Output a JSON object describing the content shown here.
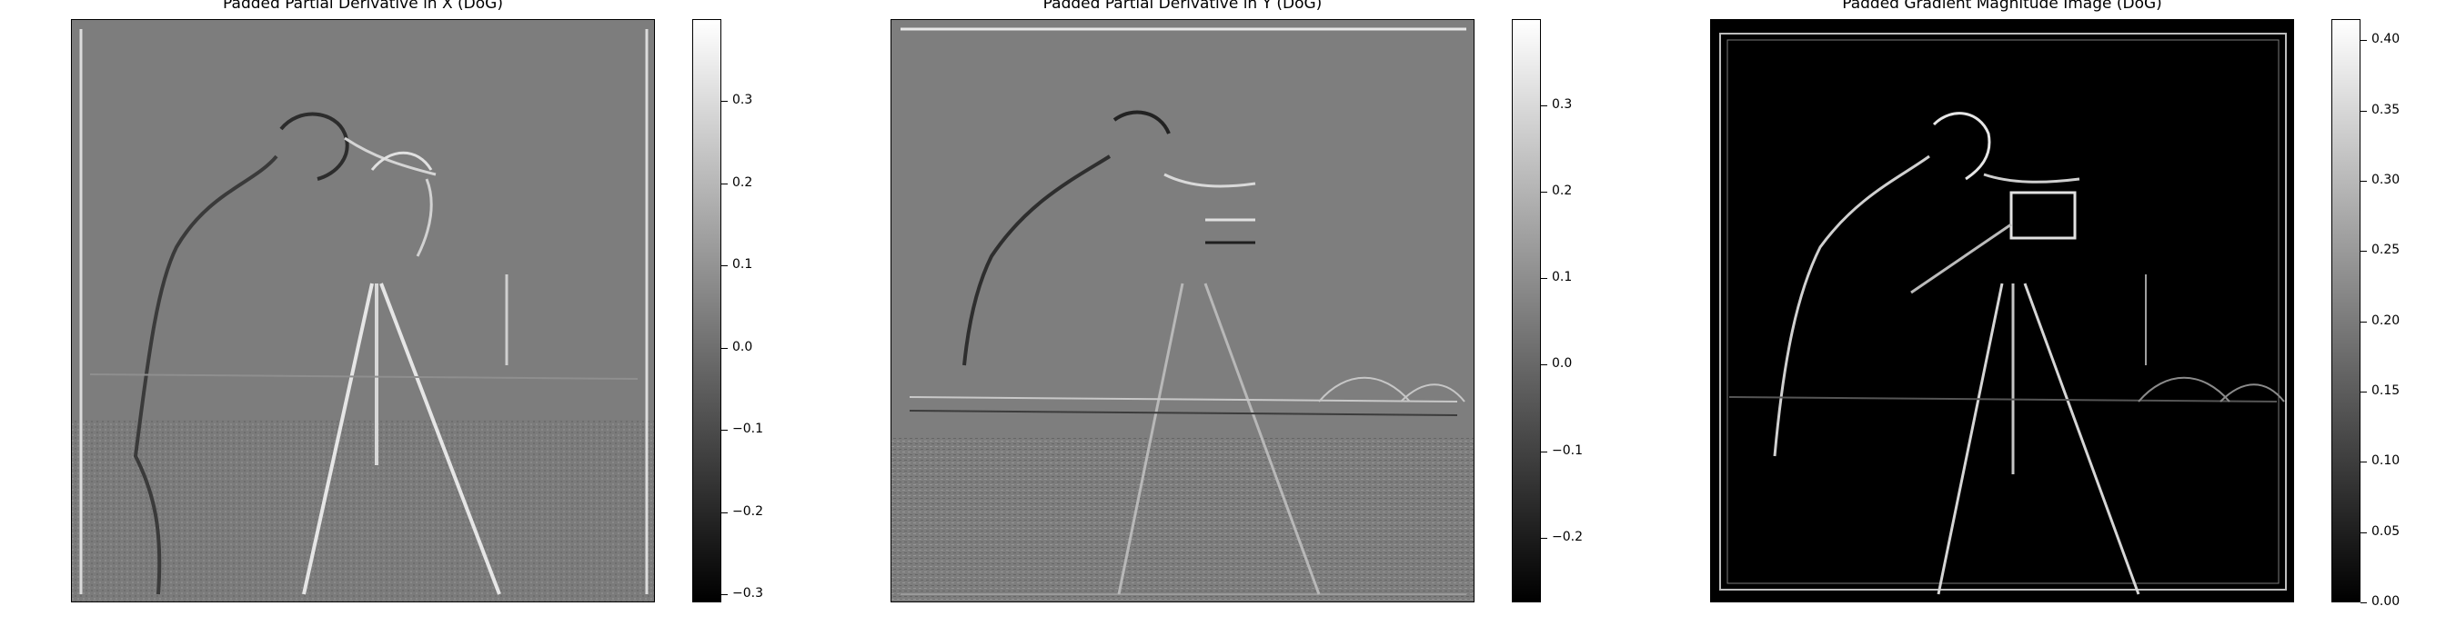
{
  "panels": [
    {
      "title": "Padded Partial Derivative in X (DoG)",
      "colorbar": {
        "min": -0.31,
        "max": 0.4,
        "ticks": [
          {
            "value": 0.3,
            "label": "0.3"
          },
          {
            "value": 0.2,
            "label": "0.2"
          },
          {
            "value": 0.1,
            "label": "0.1"
          },
          {
            "value": 0.0,
            "label": "0.0"
          },
          {
            "value": -0.1,
            "label": "−0.1"
          },
          {
            "value": -0.2,
            "label": "−0.2"
          },
          {
            "value": -0.3,
            "label": "−0.3"
          }
        ]
      }
    },
    {
      "title": "Padded Partial Derivative in Y (DoG)",
      "colorbar": {
        "min": -0.275,
        "max": 0.4,
        "ticks": [
          {
            "value": 0.3,
            "label": "0.3"
          },
          {
            "value": 0.2,
            "label": "0.2"
          },
          {
            "value": 0.1,
            "label": "0.1"
          },
          {
            "value": 0.0,
            "label": "0.0"
          },
          {
            "value": -0.1,
            "label": "−0.1"
          },
          {
            "value": -0.2,
            "label": "−0.2"
          }
        ]
      }
    },
    {
      "title": "Padded Gradient Magnitude Image (DoG)",
      "colorbar": {
        "min": 0.0,
        "max": 0.415,
        "ticks": [
          {
            "value": 0.4,
            "label": "0.40"
          },
          {
            "value": 0.35,
            "label": "0.35"
          },
          {
            "value": 0.3,
            "label": "0.30"
          },
          {
            "value": 0.25,
            "label": "0.25"
          },
          {
            "value": 0.2,
            "label": "0.20"
          },
          {
            "value": 0.15,
            "label": "0.15"
          },
          {
            "value": 0.1,
            "label": "0.10"
          },
          {
            "value": 0.05,
            "label": "0.05"
          },
          {
            "value": 0.0,
            "label": "0.00"
          }
        ]
      }
    }
  ]
}
